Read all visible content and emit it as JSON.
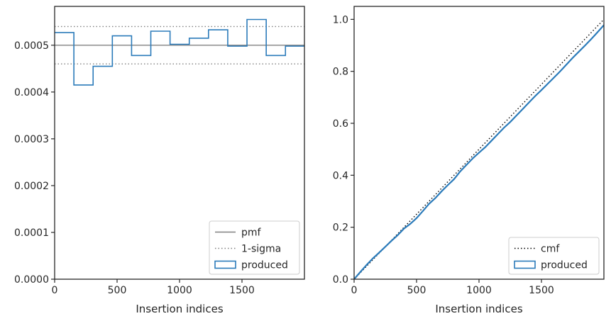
{
  "chart_data": [
    {
      "type": "line",
      "subtype": "step-histogram",
      "xlabel": "Insertion indices",
      "ylabel": "",
      "xlim": [
        0,
        2000
      ],
      "ylim": [
        0,
        0.000583
      ],
      "xticks": [
        0,
        500,
        1000,
        1500
      ],
      "xtick_labels": [
        "0",
        "500",
        "1000",
        "1500"
      ],
      "yticks": [
        0,
        0.0001,
        0.0002,
        0.0003,
        0.0004,
        0.0005
      ],
      "ytick_labels": [
        "0.0000",
        "0.0001",
        "0.0002",
        "0.0003",
        "0.0004",
        "0.0005"
      ],
      "legend_position": "lower-right",
      "series": [
        {
          "name": "pmf",
          "style": "solid",
          "color": "#808080",
          "values": [
            0.0005
          ]
        },
        {
          "name": "1-sigma",
          "style": "dotted",
          "color": "#808080",
          "values": [
            0.00046,
            0.00054
          ]
        },
        {
          "name": "produced",
          "style": "step",
          "color": "#2b7bba",
          "bin_edges": [
            0,
            154,
            308,
            462,
            616,
            770,
            924,
            1078,
            1232,
            1386,
            1540,
            1694,
            1848,
            2000
          ],
          "values": [
            0.000527,
            0.000415,
            0.000455,
            0.00052,
            0.000478,
            0.00053,
            0.000502,
            0.000515,
            0.000533,
            0.000498,
            0.000555,
            0.000478,
            0.000498
          ]
        }
      ]
    },
    {
      "type": "line",
      "xlabel": "Insertion indices",
      "ylabel": "",
      "xlim": [
        0,
        2000
      ],
      "ylim": [
        0,
        1.05
      ],
      "xticks": [
        0,
        500,
        1000,
        1500
      ],
      "xtick_labels": [
        "0",
        "500",
        "1000",
        "1500"
      ],
      "yticks": [
        0,
        0.2,
        0.4,
        0.6,
        0.8,
        1.0
      ],
      "ytick_labels": [
        "0.0",
        "0.2",
        "0.4",
        "0.6",
        "0.8",
        "1.0"
      ],
      "legend_position": "lower-right",
      "series": [
        {
          "name": "cmf",
          "style": "dotted",
          "color": "#000000",
          "x": [
            0,
            2000
          ],
          "y": [
            0,
            1.0
          ]
        },
        {
          "name": "produced",
          "style": "solid",
          "color": "#2b7bba",
          "x": [
            0,
            50,
            100,
            150,
            200,
            250,
            300,
            350,
            400,
            450,
            500,
            550,
            600,
            650,
            700,
            750,
            800,
            850,
            900,
            950,
            1000,
            1050,
            1100,
            1150,
            1200,
            1250,
            1300,
            1350,
            1400,
            1450,
            1500,
            1550,
            1600,
            1650,
            1700,
            1750,
            1800,
            1850,
            1900,
            1950,
            2000
          ],
          "y": [
            0,
            0.028,
            0.055,
            0.08,
            0.102,
            0.125,
            0.148,
            0.17,
            0.195,
            0.213,
            0.235,
            0.262,
            0.29,
            0.312,
            0.338,
            0.362,
            0.385,
            0.415,
            0.44,
            0.465,
            0.487,
            0.508,
            0.533,
            0.558,
            0.583,
            0.605,
            0.63,
            0.655,
            0.68,
            0.705,
            0.728,
            0.752,
            0.776,
            0.8,
            0.826,
            0.852,
            0.876,
            0.9,
            0.925,
            0.951,
            0.978
          ]
        }
      ]
    }
  ]
}
